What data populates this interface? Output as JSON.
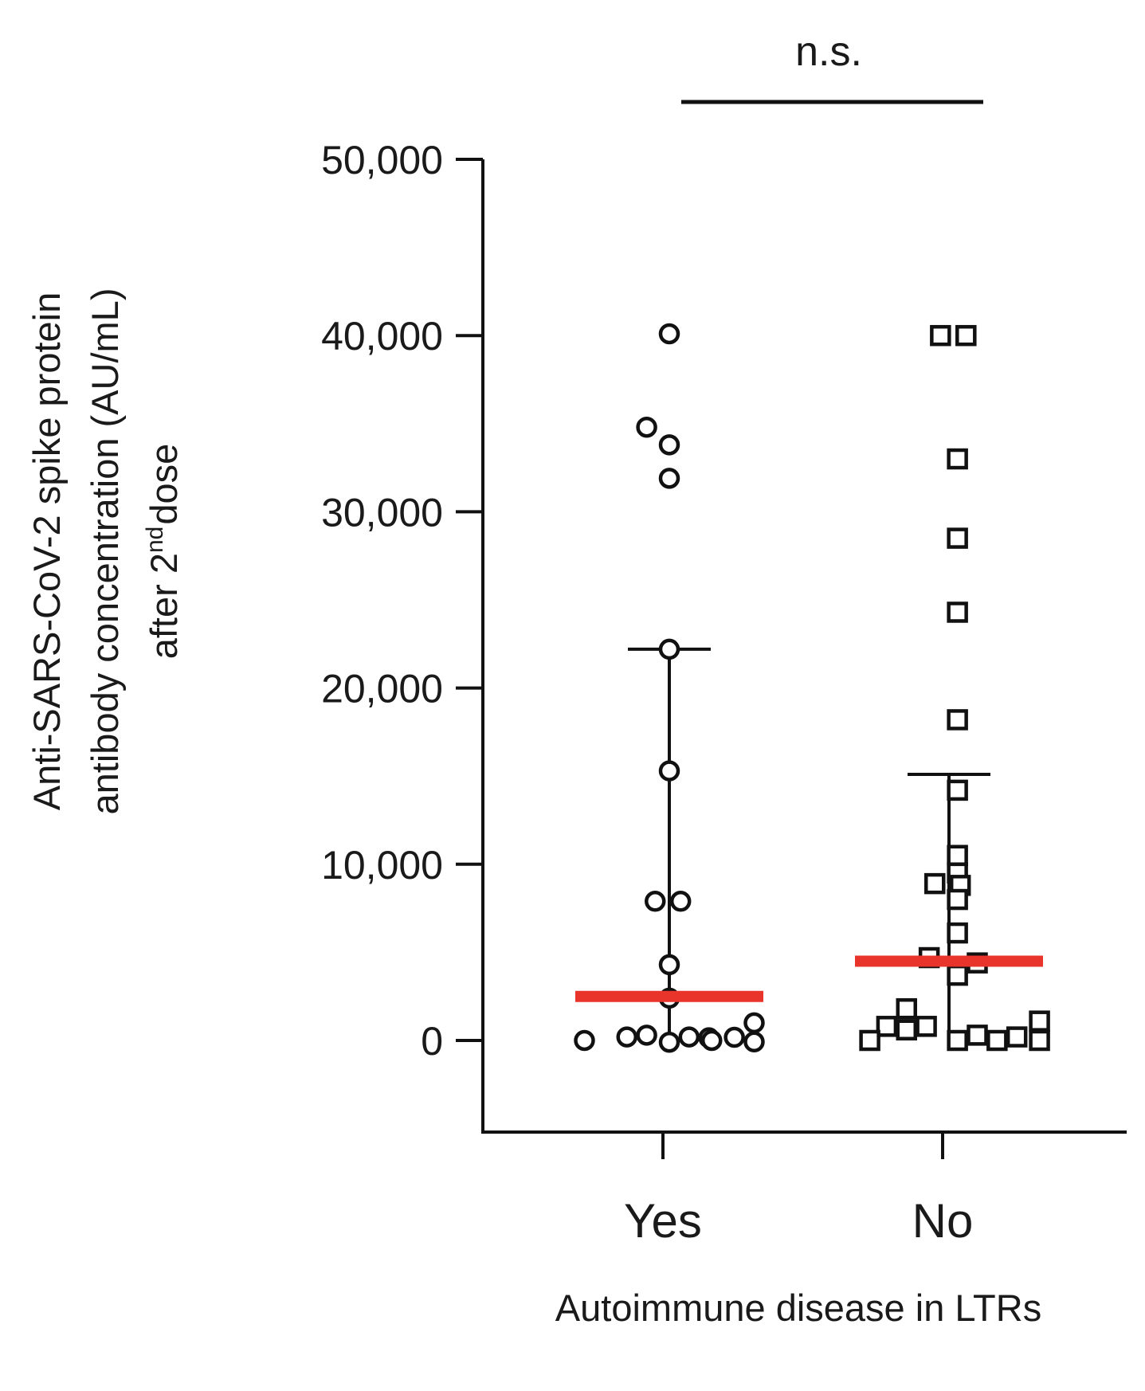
{
  "chart_data": {
    "type": "scatter",
    "xlabel": "Autoimmune disease in LTRs",
    "ylabel_lines": [
      "Anti-SARS-CoV-2 spike protein",
      "antibody concentration (AU/mL)",
      "after 2",
      "nd",
      "dose"
    ],
    "ylim": [
      -5200,
      50000
    ],
    "yticks": [
      0,
      10000,
      20000,
      30000,
      40000,
      50000
    ],
    "ytick_labels": [
      "0",
      "10,000",
      "20,000",
      "30,000",
      "40,000",
      "50,000"
    ],
    "categories": [
      "Yes",
      "No"
    ],
    "grid": false,
    "legend": "none",
    "significance": {
      "label": "n.s.",
      "between": [
        "Yes",
        "No"
      ]
    },
    "colors": {
      "median": "#e8342a",
      "marker": "#111111",
      "axis": "#111111"
    },
    "series": [
      {
        "category": "Yes",
        "marker": "circle",
        "points": [
          {
            "offset": 0,
            "y": 40100
          },
          {
            "offset": -0.08,
            "y": 34800
          },
          {
            "offset": 0,
            "y": 33800
          },
          {
            "offset": 0,
            "y": 31900
          },
          {
            "offset": 0,
            "y": 22200
          },
          {
            "offset": 0,
            "y": 15300
          },
          {
            "offset": -0.05,
            "y": 7900
          },
          {
            "offset": 0.04,
            "y": 7900
          },
          {
            "offset": 0,
            "y": 4300
          },
          {
            "offset": 0,
            "y": 2400
          },
          {
            "offset": 0.3,
            "y": 1000
          },
          {
            "offset": -0.15,
            "y": 200
          },
          {
            "offset": -0.08,
            "y": 300
          },
          {
            "offset": 0.07,
            "y": 200
          },
          {
            "offset": 0.14,
            "y": 150
          },
          {
            "offset": 0.23,
            "y": 180
          },
          {
            "offset": -0.3,
            "y": 0
          },
          {
            "offset": 0,
            "y": -100
          },
          {
            "offset": 0.15,
            "y": 0
          },
          {
            "offset": 0.3,
            "y": -80
          }
        ],
        "median": 2500,
        "iqr_low": 0,
        "iqr_high": 22200
      },
      {
        "category": "No",
        "marker": "square",
        "points": [
          {
            "offset": -0.03,
            "y": 40000
          },
          {
            "offset": 0.06,
            "y": 40000
          },
          {
            "offset": 0.03,
            "y": 33000
          },
          {
            "offset": 0.03,
            "y": 28500
          },
          {
            "offset": 0.03,
            "y": 24300
          },
          {
            "offset": 0.03,
            "y": 18200
          },
          {
            "offset": 0.03,
            "y": 14200
          },
          {
            "offset": 0.03,
            "y": 10500
          },
          {
            "offset": 0.03,
            "y": 9500
          },
          {
            "offset": -0.05,
            "y": 8900
          },
          {
            "offset": 0.04,
            "y": 8800
          },
          {
            "offset": 0.03,
            "y": 8000
          },
          {
            "offset": 0.03,
            "y": 6100
          },
          {
            "offset": -0.07,
            "y": 4700
          },
          {
            "offset": 0.1,
            "y": 4400
          },
          {
            "offset": 0.03,
            "y": 3700
          },
          {
            "offset": -0.15,
            "y": 1800
          },
          {
            "offset": 0.32,
            "y": 1100
          },
          {
            "offset": -0.22,
            "y": 800
          },
          {
            "offset": -0.15,
            "y": 600
          },
          {
            "offset": -0.08,
            "y": 800
          },
          {
            "offset": -0.28,
            "y": 0
          },
          {
            "offset": 0.03,
            "y": 0
          },
          {
            "offset": 0.1,
            "y": 300
          },
          {
            "offset": 0.17,
            "y": 0
          },
          {
            "offset": 0.24,
            "y": 200
          },
          {
            "offset": 0.32,
            "y": 0
          }
        ],
        "median": 4500,
        "iqr_low": 0,
        "iqr_high": 15100
      }
    ]
  }
}
